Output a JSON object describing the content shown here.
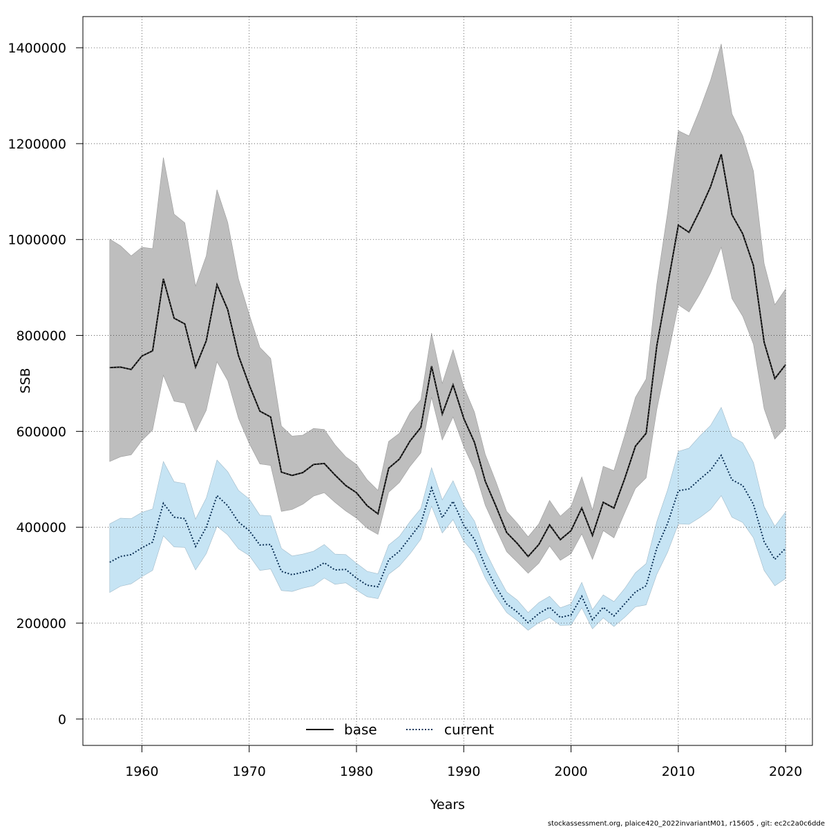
{
  "footer_text": "stockassessment.org, plaice420_2022invariantM01, r15605 , git: ec2c2a0c6dde",
  "colors": {
    "base_band": "#bebebe",
    "base_line": "#000000",
    "current_band": "#c6e4f4",
    "current_line": "#0a2f55",
    "grid": "#444444"
  },
  "chart_data": {
    "type": "line",
    "title": "",
    "xlabel": "Years",
    "ylabel": "SSB",
    "xlim": [
      1954.5,
      2022.5
    ],
    "ylim": [
      -55000,
      1465000
    ],
    "xticks": [
      1960,
      1970,
      1980,
      1990,
      2000,
      2010,
      2020
    ],
    "yticks": [
      0,
      200000,
      400000,
      600000,
      800000,
      1000000,
      1200000,
      1400000
    ],
    "grid": true,
    "legend_position": "bottom-center",
    "years": [
      1957,
      1958,
      1959,
      1960,
      1961,
      1962,
      1963,
      1964,
      1965,
      1966,
      1967,
      1968,
      1969,
      1970,
      1971,
      1972,
      1973,
      1974,
      1975,
      1976,
      1977,
      1978,
      1979,
      1980,
      1981,
      1982,
      1983,
      1984,
      1985,
      1986,
      1987,
      1988,
      1989,
      1990,
      1991,
      1992,
      1993,
      1994,
      1995,
      1996,
      1997,
      1998,
      1999,
      2000,
      2001,
      2002,
      2003,
      2004,
      2005,
      2006,
      2007,
      2008,
      2009,
      2010,
      2011,
      2012,
      2013,
      2014,
      2015,
      2016,
      2017,
      2018,
      2019,
      2020
    ],
    "series": [
      {
        "name": "base",
        "line_style": "solid",
        "values": [
          733000,
          734000,
          729000,
          757000,
          768000,
          918000,
          836000,
          824000,
          734000,
          789000,
          906000,
          854000,
          758000,
          697000,
          642000,
          630000,
          515000,
          508000,
          514000,
          531000,
          533000,
          509000,
          487000,
          472000,
          445000,
          428000,
          523000,
          542000,
          580000,
          608000,
          736000,
          636000,
          697000,
          627000,
          577000,
          496000,
          444000,
          389000,
          366000,
          339000,
          364000,
          405000,
          374000,
          393000,
          440000,
          383000,
          452000,
          440000,
          501000,
          569000,
          596000,
          779000,
          904000,
          1030000,
          1015000,
          1060000,
          1110000,
          1178000,
          1052000,
          1012000,
          946000,
          786000,
          710000,
          739000
        ],
        "upper": [
          1001000,
          987000,
          966000,
          984000,
          981000,
          1171000,
          1053000,
          1035000,
          903000,
          966000,
          1104000,
          1036000,
          918000,
          844000,
          775000,
          752000,
          611000,
          590000,
          592000,
          606000,
          604000,
          572000,
          547000,
          531000,
          499000,
          477000,
          579000,
          596000,
          639000,
          666000,
          805000,
          700000,
          770000,
          693000,
          640000,
          552000,
          495000,
          433000,
          408000,
          380000,
          407000,
          456000,
          423000,
          443000,
          505000,
          436000,
          527000,
          518000,
          591000,
          671000,
          709000,
          907000,
          1057000,
          1227000,
          1216000,
          1271000,
          1332000,
          1408000,
          1262000,
          1216000,
          1143000,
          950000,
          864000,
          897000
        ],
        "lower": [
          537000,
          547000,
          551000,
          581000,
          603000,
          717000,
          663000,
          659000,
          599000,
          644000,
          745000,
          706000,
          627000,
          575000,
          532000,
          529000,
          433000,
          437000,
          448000,
          465000,
          472000,
          452000,
          434000,
          419000,
          398000,
          385000,
          473000,
          493000,
          527000,
          555000,
          671000,
          582000,
          630000,
          568000,
          520000,
          446000,
          397000,
          349000,
          327000,
          304000,
          325000,
          361000,
          331000,
          345000,
          386000,
          333000,
          393000,
          378000,
          430000,
          481000,
          503000,
          646000,
          754000,
          864000,
          849000,
          886000,
          930000,
          984000,
          877000,
          840000,
          782000,
          647000,
          584000,
          608000
        ]
      },
      {
        "name": "current",
        "line_style": "dotted",
        "values": [
          327000,
          339000,
          343000,
          357000,
          369000,
          450000,
          421000,
          418000,
          360000,
          400000,
          466000,
          445000,
          411000,
          393000,
          363000,
          364000,
          308000,
          301000,
          306000,
          312000,
          326000,
          311000,
          312000,
          294000,
          279000,
          276000,
          332000,
          350000,
          379000,
          408000,
          482000,
          420000,
          454000,
          404000,
          375000,
          319000,
          276000,
          240000,
          223000,
          201000,
          220000,
          233000,
          212000,
          217000,
          256000,
          207000,
          233000,
          215000,
          240000,
          265000,
          278000,
          357000,
          408000,
          476000,
          480000,
          500000,
          519000,
          550000,
          499000,
          487000,
          448000,
          370000,
          333000,
          356000
        ],
        "upper": [
          407000,
          419000,
          418000,
          431000,
          438000,
          537000,
          495000,
          491000,
          417000,
          461000,
          540000,
          516000,
          477000,
          459000,
          425000,
          424000,
          356000,
          340000,
          344000,
          350000,
          364000,
          344000,
          343000,
          325000,
          308000,
          303000,
          363000,
          381000,
          412000,
          439000,
          524000,
          457000,
          497000,
          446000,
          413000,
          351000,
          306000,
          265000,
          248000,
          222000,
          243000,
          256000,
          232000,
          240000,
          285000,
          228000,
          259000,
          245000,
          272000,
          305000,
          324000,
          412000,
          478000,
          558000,
          565000,
          590000,
          612000,
          650000,
          589000,
          576000,
          535000,
          443000,
          402000,
          432000
        ],
        "lower": [
          264000,
          277000,
          282000,
          297000,
          310000,
          382000,
          359000,
          358000,
          311000,
          345000,
          402000,
          384000,
          355000,
          341000,
          310000,
          313000,
          268000,
          266000,
          273000,
          278000,
          294000,
          281000,
          284000,
          269000,
          255000,
          251000,
          302000,
          319000,
          345000,
          375000,
          444000,
          388000,
          416000,
          371000,
          345000,
          294000,
          255000,
          222000,
          205000,
          185000,
          201000,
          212000,
          195000,
          196000,
          232000,
          188000,
          211000,
          193000,
          212000,
          234000,
          238000,
          302000,
          348000,
          407000,
          406000,
          420000,
          437000,
          466000,
          421000,
          410000,
          378000,
          310000,
          278000,
          293000
        ]
      }
    ]
  }
}
